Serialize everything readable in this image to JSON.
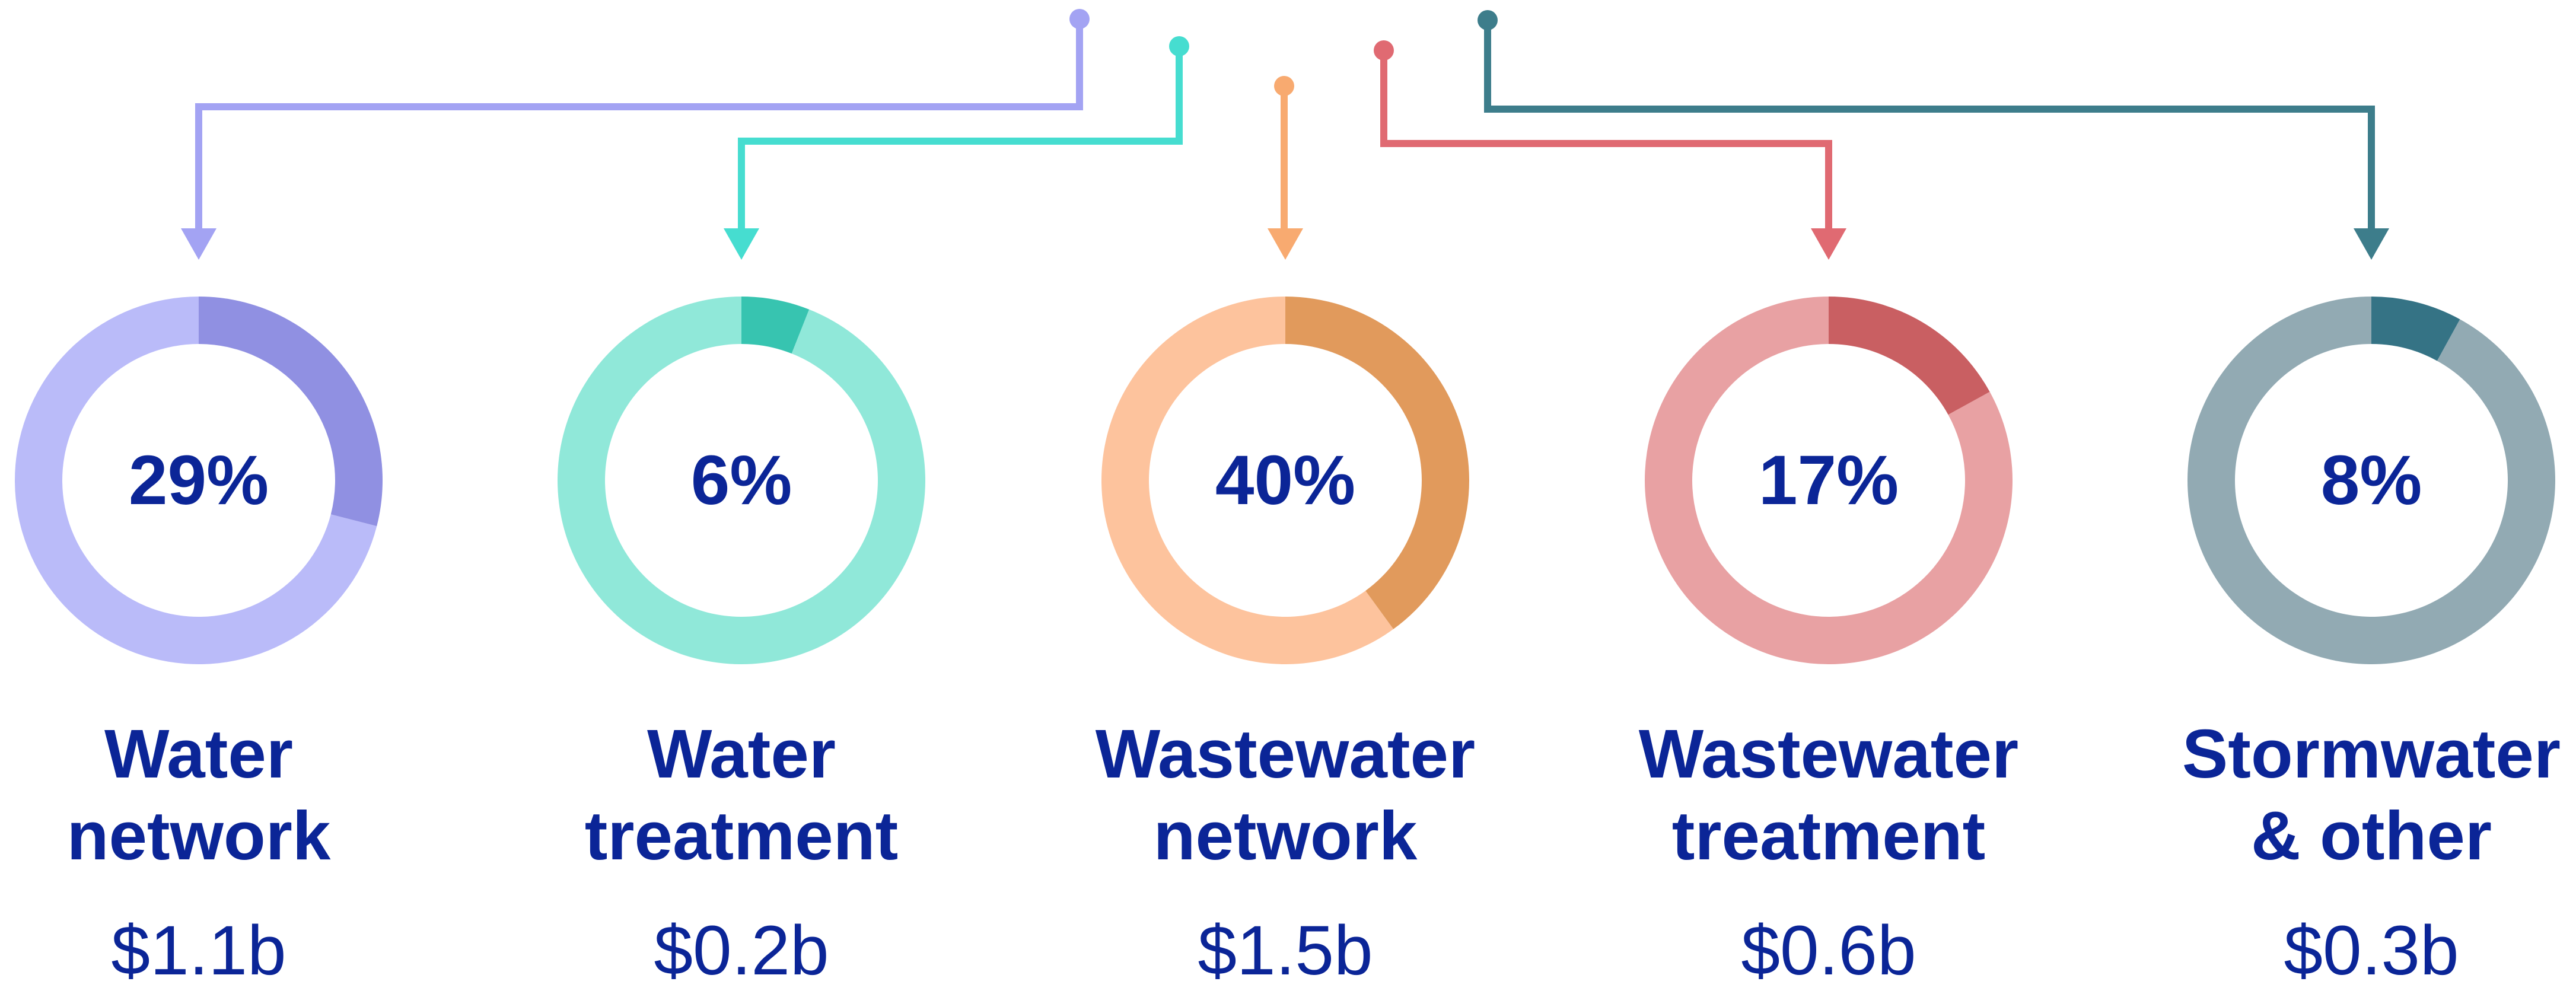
{
  "chart_data": {
    "type": "pie",
    "variant": "donut",
    "segments": [
      {
        "name": "Water network",
        "label_lines": [
          "Water",
          "network"
        ],
        "value_pct": 29,
        "pct_label": "29%",
        "amount": "$1.1b",
        "color_dark": "#9090e2",
        "color_light": "#babbf9",
        "connector": "#a3a3f3"
      },
      {
        "name": "Water treatment",
        "label_lines": [
          "Water",
          "treatment"
        ],
        "value_pct": 6,
        "pct_label": "6%",
        "amount": "$0.2b",
        "color_dark": "#37c4b0",
        "color_light": "#90e8d9",
        "connector": "#46ddd0"
      },
      {
        "name": "Wastewater network",
        "label_lines": [
          "Wastewater",
          "network"
        ],
        "value_pct": 40,
        "pct_label": "40%",
        "amount": "$1.5b",
        "color_dark": "#e19a5c",
        "color_light": "#fdc39d",
        "connector": "#f8aa70"
      },
      {
        "name": "Wastewater treatment",
        "label_lines": [
          "Wastewater",
          "treatment"
        ],
        "value_pct": 17,
        "pct_label": "17%",
        "amount": "$0.6b",
        "color_dark": "#c95f62",
        "color_light": "#e8a1a3",
        "connector": "#e06a72"
      },
      {
        "name": "Stormwater & other",
        "label_lines": [
          "Stormwater",
          "& other"
        ],
        "value_pct": 8,
        "pct_label": "8%",
        "amount": "$0.3b",
        "color_dark": "#357385",
        "color_light": "#92aab3",
        "connector": "#3d7d8b"
      }
    ]
  }
}
